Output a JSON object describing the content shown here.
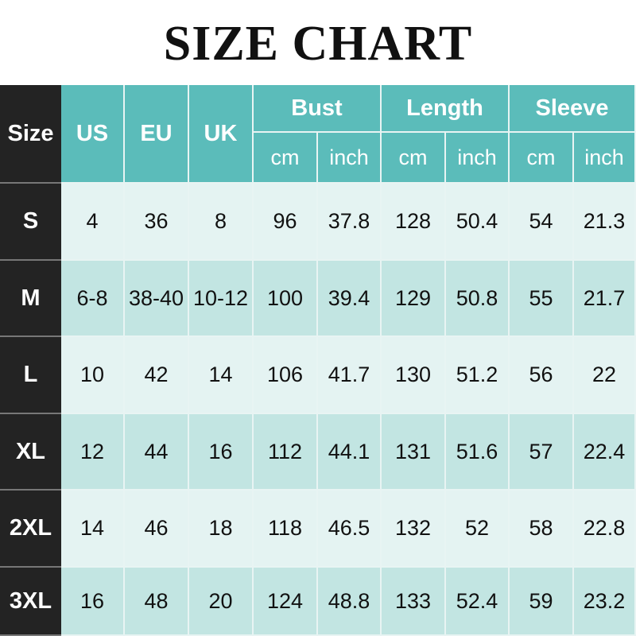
{
  "title": "SIZE CHART",
  "colors": {
    "header": "#5bbcba",
    "size_column": "#232323",
    "row_light": "#e4f3f2",
    "row_dark": "#c2e5e2"
  },
  "header": {
    "size": "Size",
    "us": "US",
    "eu": "EU",
    "uk": "UK",
    "groups": [
      {
        "label": "Bust",
        "units": [
          "cm",
          "inch"
        ]
      },
      {
        "label": "Length",
        "units": [
          "cm",
          "inch"
        ]
      },
      {
        "label": "Sleeve",
        "units": [
          "cm",
          "inch"
        ]
      }
    ]
  },
  "rows": [
    [
      "S",
      "4",
      "36",
      "8",
      "96",
      "37.8",
      "128",
      "50.4",
      "54",
      "21.3"
    ],
    [
      "M",
      "6-8",
      "38-40",
      "10-12",
      "100",
      "39.4",
      "129",
      "50.8",
      "55",
      "21.7"
    ],
    [
      "L",
      "10",
      "42",
      "14",
      "106",
      "41.7",
      "130",
      "51.2",
      "56",
      "22"
    ],
    [
      "XL",
      "12",
      "44",
      "16",
      "112",
      "44.1",
      "131",
      "51.6",
      "57",
      "22.4"
    ],
    [
      "2XL",
      "14",
      "46",
      "18",
      "118",
      "46.5",
      "132",
      "52",
      "58",
      "22.8"
    ],
    [
      "3XL",
      "16",
      "48",
      "20",
      "124",
      "48.8",
      "133",
      "52.4",
      "59",
      "23.2"
    ]
  ]
}
